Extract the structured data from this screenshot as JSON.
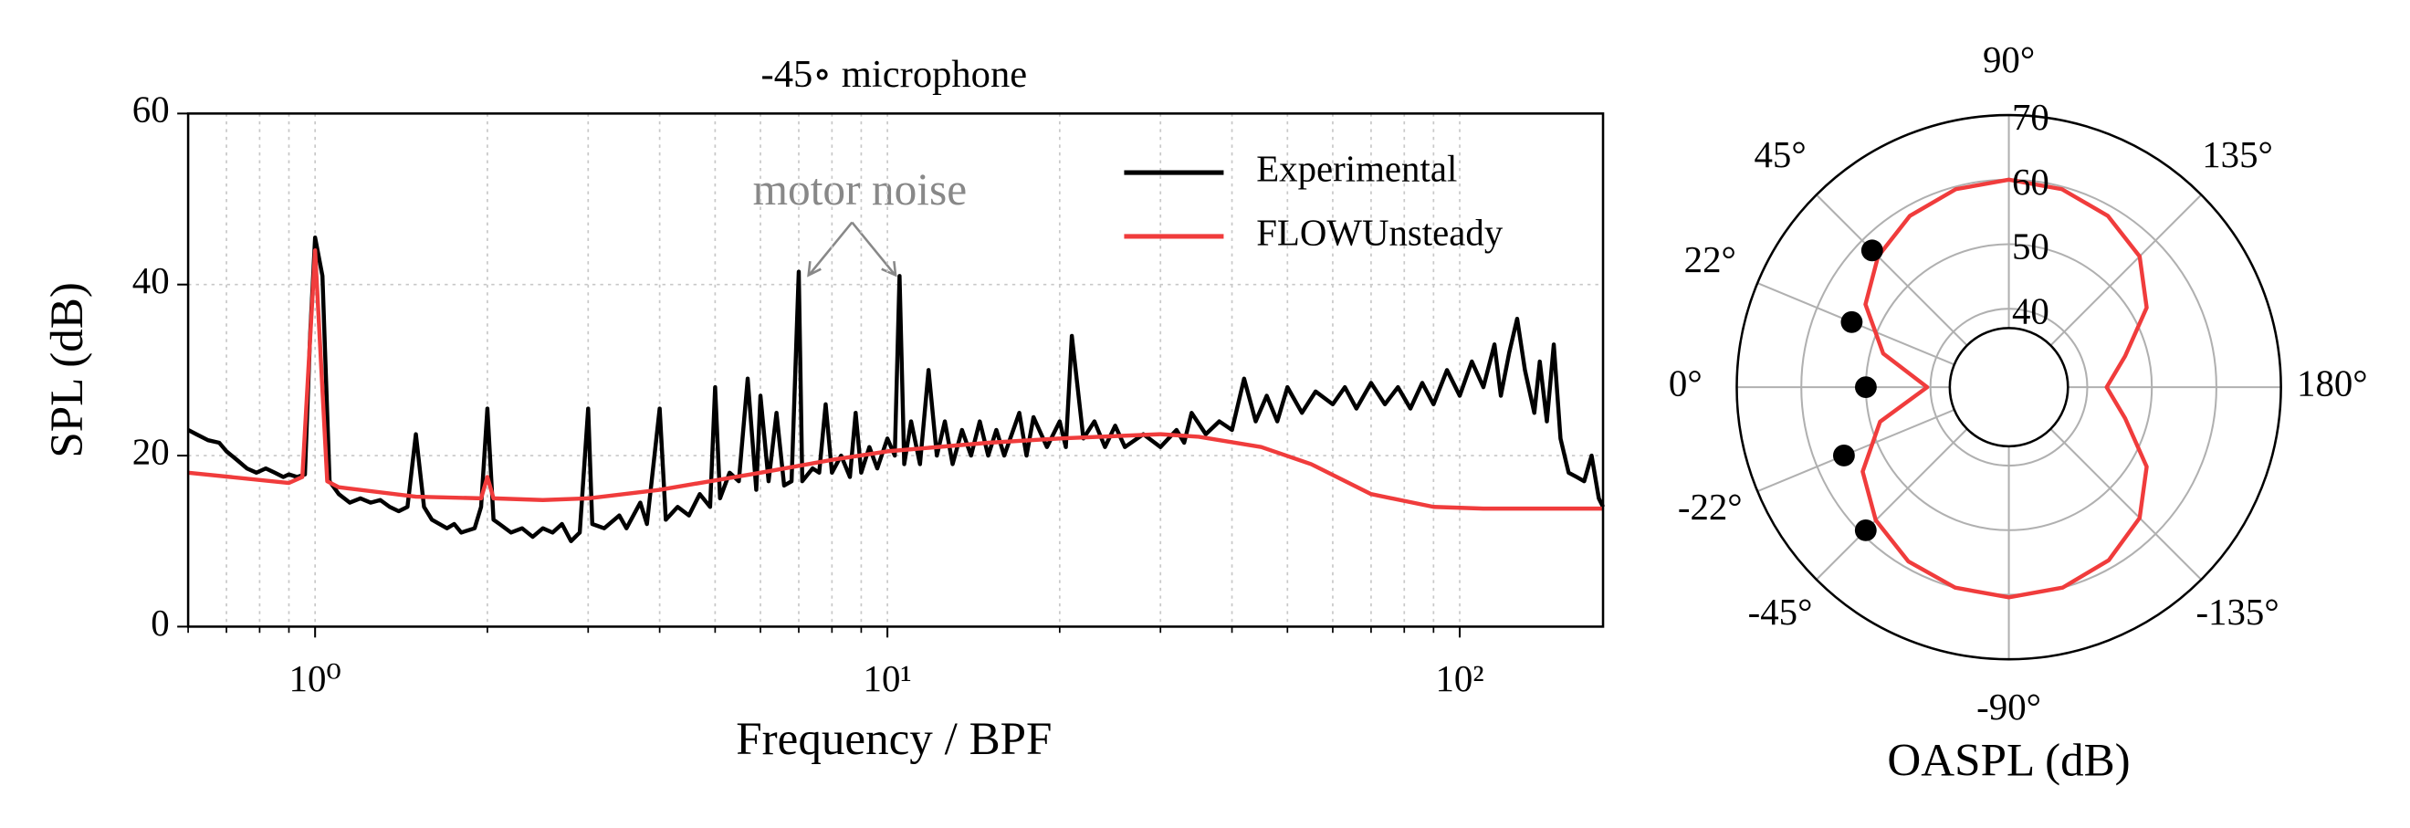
{
  "chart_data": [
    {
      "type": "line",
      "title": "-45∘ microphone",
      "xlabel": "Frequency / BPF",
      "ylabel": "SPL (dB)",
      "xscale": "log",
      "xlim": [
        0.6,
        178
      ],
      "ylim": [
        0,
        60
      ],
      "xticks": [
        {
          "value": 1,
          "label": "10⁰"
        },
        {
          "value": 10,
          "label": "10¹"
        },
        {
          "value": 100,
          "label": "10²"
        }
      ],
      "xminorticks": [
        0.6,
        0.7,
        0.8,
        0.9,
        2,
        3,
        4,
        5,
        6,
        7,
        8,
        9,
        20,
        30,
        40,
        50,
        60,
        70,
        80,
        90
      ],
      "yticks": [
        0,
        20,
        40,
        60
      ],
      "grid": true,
      "legend": "upper right",
      "annotation": "motor noise",
      "series": [
        {
          "name": "Experimental",
          "color": "#000000",
          "x": [
            0.6,
            0.62,
            0.65,
            0.68,
            0.7,
            0.73,
            0.76,
            0.79,
            0.82,
            0.85,
            0.88,
            0.9,
            0.93,
            0.96,
            0.98,
            1.0,
            1.03,
            1.06,
            1.1,
            1.15,
            1.2,
            1.25,
            1.3,
            1.35,
            1.4,
            1.45,
            1.5,
            1.55,
            1.6,
            1.7,
            1.75,
            1.8,
            1.9,
            1.95,
            2.0,
            2.05,
            2.1,
            2.2,
            2.3,
            2.4,
            2.5,
            2.6,
            2.7,
            2.8,
            2.9,
            3.0,
            3.05,
            3.2,
            3.4,
            3.5,
            3.7,
            3.8,
            4.0,
            4.1,
            4.3,
            4.5,
            4.7,
            4.9,
            5.0,
            5.1,
            5.3,
            5.5,
            5.7,
            5.9,
            6.0,
            6.2,
            6.4,
            6.6,
            6.8,
            7.0,
            7.1,
            7.4,
            7.6,
            7.8,
            8.0,
            8.3,
            8.6,
            8.8,
            9.0,
            9.3,
            9.6,
            10.0,
            10.3,
            10.5,
            10.7,
            11,
            11.4,
            11.8,
            12.2,
            12.6,
            13,
            13.5,
            14,
            14.5,
            15,
            15.5,
            16,
            17,
            17.5,
            18,
            19,
            20,
            20.5,
            21,
            22,
            23,
            24,
            25,
            26,
            28,
            30,
            32,
            33,
            34,
            36,
            38,
            40,
            42,
            44,
            46,
            48,
            50,
            53,
            56,
            60,
            63,
            66,
            70,
            74,
            78,
            82,
            86,
            90,
            95,
            100,
            105,
            110,
            115,
            118,
            122,
            126,
            130,
            135,
            138,
            142,
            146,
            150,
            155,
            160,
            165,
            170,
            175,
            178
          ],
          "values": [
            23,
            22.5,
            21.8,
            21.5,
            20.5,
            19.5,
            18.5,
            18,
            18.5,
            18,
            17.5,
            17.8,
            17.5,
            17.8,
            34,
            45.5,
            41,
            17,
            15.5,
            14.5,
            15,
            14.5,
            14.8,
            14,
            13.5,
            14,
            22.5,
            14,
            12.5,
            11.5,
            12,
            11,
            11.5,
            14,
            25.5,
            12.5,
            12,
            11,
            11.5,
            10.5,
            11.5,
            11,
            12,
            10,
            11,
            25.5,
            12,
            11.5,
            13,
            11.5,
            14.5,
            12,
            25.5,
            12.5,
            14,
            13,
            15.5,
            14,
            28,
            15,
            18,
            17,
            29,
            16,
            27,
            17,
            25,
            16.5,
            17,
            41.5,
            17,
            18.5,
            18,
            26,
            18,
            20,
            17.5,
            25,
            18,
            21,
            18.5,
            22,
            20,
            41,
            19,
            24,
            19,
            30,
            20,
            24,
            19,
            23,
            20,
            24,
            20,
            23,
            20,
            25,
            20,
            24.5,
            21,
            24,
            21,
            34,
            22,
            24,
            21,
            23.5,
            21,
            22.5,
            21,
            23,
            21.5,
            25,
            22.5,
            24,
            23,
            29,
            24,
            27,
            24,
            28,
            25,
            27.5,
            26,
            28,
            25.5,
            28.5,
            26,
            28,
            25.5,
            28.5,
            26,
            30,
            27,
            31,
            28,
            33,
            27,
            32,
            36,
            30,
            25,
            31,
            24,
            33,
            22,
            18,
            17.5,
            17,
            20,
            15,
            14
          ]
        },
        {
          "name": "FLOWUnsteady",
          "color": "#f03c3c",
          "x": [
            0.6,
            0.9,
            0.95,
            1.0,
            1.05,
            1.1,
            1.5,
            1.95,
            2.0,
            2.05,
            2.5,
            3,
            4,
            6,
            8,
            10,
            15,
            20,
            30,
            35,
            45,
            55,
            70,
            90,
            110,
            178
          ],
          "values": [
            18,
            16.8,
            17.5,
            44,
            17,
            16.3,
            15.2,
            15,
            17.5,
            15,
            14.8,
            15,
            16,
            18,
            19.5,
            20.5,
            21.5,
            22,
            22.5,
            22.2,
            21,
            19,
            15.5,
            14,
            13.8,
            13.8
          ]
        }
      ]
    },
    {
      "type": "polar",
      "xlabel": "OASPL (dB)",
      "ylim": [
        37,
        70
      ],
      "yticks": [
        40,
        50,
        60,
        70
      ],
      "xticks": [
        {
          "value": 90,
          "label": "90°"
        },
        {
          "value": 45,
          "label": "45°"
        },
        {
          "value": 22.5,
          "label": "22°"
        },
        {
          "value": 0,
          "label": "0°"
        },
        {
          "value": -22.5,
          "label": "-22°"
        },
        {
          "value": -45,
          "label": "-45°"
        },
        {
          "value": -90,
          "label": "-90°"
        },
        {
          "value": -135,
          "label": "-135°"
        },
        {
          "value": 180,
          "label": "180°"
        },
        {
          "value": 135,
          "label": "135°"
        }
      ],
      "grid": true,
      "series": [
        {
          "color": "#f03c3c",
          "marker": "line",
          "x": [
            0,
            15,
            30,
            45,
            60,
            75,
            90,
            105,
            120,
            135,
            150,
            165,
            180,
            -165,
            -150,
            -135,
            -120,
            -105,
            -90,
            -75,
            -60,
            -45,
            -30,
            -15
          ],
          "values": [
            40.5,
            48,
            53.5,
            56.5,
            58.5,
            59.6,
            60,
            59.6,
            58.5,
            56.5,
            52.5,
            46.5,
            43,
            46.5,
            52.5,
            56.5,
            58.8,
            60,
            60.4,
            60,
            59,
            57,
            54,
            48.5
          ]
        },
        {
          "color": "#000000",
          "marker": "dot",
          "x": [
            45,
            22.5,
            0,
            -22.5,
            -45
          ],
          "values": [
            57.8,
            54.2,
            50,
            55.5,
            59.2
          ]
        }
      ]
    }
  ]
}
